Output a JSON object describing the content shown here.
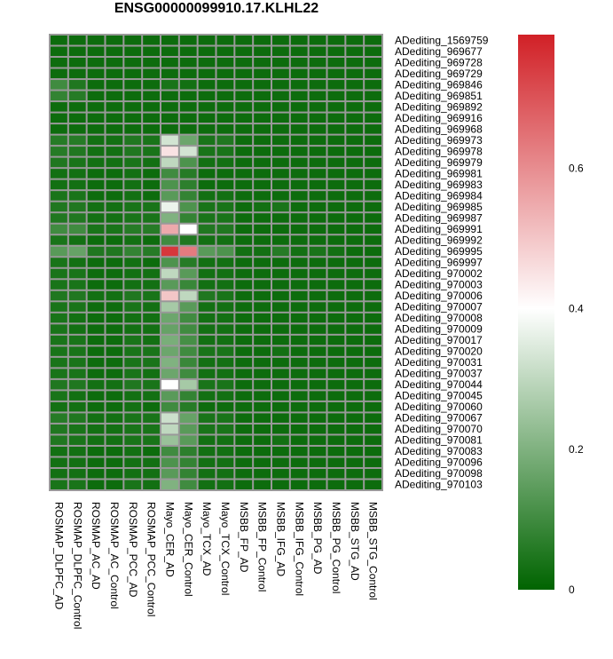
{
  "chart_data": {
    "type": "heatmap",
    "title": "ENSG00000099910.17.KLHL22",
    "columns": [
      "ROSMAP_DLPFC_AD",
      "ROSMAP_DLPFC_Control",
      "ROSMAP_AC_AD",
      "ROSMAP_AC_Control",
      "ROSMAP_PCC_AD",
      "ROSMAP_PCC_Control",
      "Mayo_CER_AD",
      "Mayo_CER_Control",
      "Mayo_TCX_AD",
      "Mayo_TCX_Control",
      "MSBB_FP_AD",
      "MSBB_FP_Control",
      "MSBB_IFG_AD",
      "MSBB_IFG_Control",
      "MSBB_PG_AD",
      "MSBB_PG_Control",
      "MSBB_STG_AD",
      "MSBB_STG_Control"
    ],
    "rows": [
      "ADediting_1569759",
      "ADediting_969677",
      "ADediting_969728",
      "ADediting_969729",
      "ADediting_969846",
      "ADediting_969851",
      "ADediting_969892",
      "ADediting_969916",
      "ADediting_969968",
      "ADediting_969973",
      "ADediting_969978",
      "ADediting_969979",
      "ADediting_969981",
      "ADediting_969983",
      "ADediting_969984",
      "ADediting_969985",
      "ADediting_969987",
      "ADediting_969991",
      "ADediting_969992",
      "ADediting_969995",
      "ADediting_969997",
      "ADediting_970002",
      "ADediting_970003",
      "ADediting_970006",
      "ADediting_970007",
      "ADediting_970008",
      "ADediting_970009",
      "ADediting_970017",
      "ADediting_970020",
      "ADediting_970031",
      "ADediting_970037",
      "ADediting_970044",
      "ADediting_970045",
      "ADediting_970060",
      "ADediting_970067",
      "ADediting_970070",
      "ADediting_970081",
      "ADediting_970083",
      "ADediting_970096",
      "ADediting_970098",
      "ADediting_970103"
    ],
    "values": [
      [
        0.02,
        0.02,
        0.02,
        0.02,
        0.02,
        0.02,
        0.02,
        0.02,
        0.02,
        0.02,
        0.02,
        0.02,
        0.02,
        0.02,
        0.02,
        0.02,
        0.02,
        0.02
      ],
      [
        0.02,
        0.02,
        0.02,
        0.02,
        0.02,
        0.02,
        0.02,
        0.02,
        0.02,
        0.02,
        0.02,
        0.02,
        0.02,
        0.02,
        0.02,
        0.02,
        0.02,
        0.02
      ],
      [
        0.02,
        0.02,
        0.02,
        0.02,
        0.02,
        0.02,
        0.02,
        0.02,
        0.02,
        0.02,
        0.02,
        0.02,
        0.02,
        0.02,
        0.02,
        0.02,
        0.02,
        0.02
      ],
      [
        0.02,
        0.02,
        0.02,
        0.02,
        0.02,
        0.02,
        0.02,
        0.02,
        0.02,
        0.02,
        0.02,
        0.02,
        0.02,
        0.02,
        0.02,
        0.02,
        0.02,
        0.02
      ],
      [
        0.1,
        0.05,
        0.02,
        0.02,
        0.02,
        0.02,
        0.04,
        0.03,
        0.02,
        0.02,
        0.02,
        0.02,
        0.02,
        0.02,
        0.02,
        0.02,
        0.02,
        0.02
      ],
      [
        0.08,
        0.06,
        0.02,
        0.02,
        0.02,
        0.02,
        0.02,
        0.02,
        0.02,
        0.02,
        0.02,
        0.02,
        0.02,
        0.02,
        0.02,
        0.02,
        0.02,
        0.02
      ],
      [
        0.02,
        0.02,
        0.02,
        0.02,
        0.02,
        0.02,
        0.02,
        0.02,
        0.02,
        0.02,
        0.02,
        0.02,
        0.02,
        0.02,
        0.02,
        0.02,
        0.02,
        0.02
      ],
      [
        0.02,
        0.02,
        0.02,
        0.02,
        0.02,
        0.02,
        0.02,
        0.02,
        0.02,
        0.02,
        0.02,
        0.02,
        0.02,
        0.02,
        0.02,
        0.02,
        0.02,
        0.02
      ],
      [
        0.02,
        0.02,
        0.02,
        0.02,
        0.02,
        0.02,
        0.02,
        0.02,
        0.02,
        0.02,
        0.02,
        0.02,
        0.02,
        0.02,
        0.02,
        0.02,
        0.02,
        0.02
      ],
      [
        0.06,
        0.06,
        0.03,
        0.03,
        0.05,
        0.04,
        0.33,
        0.17,
        0.04,
        0.05,
        0.02,
        0.02,
        0.02,
        0.02,
        0.02,
        0.02,
        0.02,
        0.02
      ],
      [
        0.06,
        0.05,
        0.03,
        0.03,
        0.05,
        0.04,
        0.45,
        0.33,
        0.04,
        0.04,
        0.02,
        0.02,
        0.02,
        0.02,
        0.02,
        0.02,
        0.02,
        0.02
      ],
      [
        0.05,
        0.04,
        0.03,
        0.03,
        0.04,
        0.03,
        0.3,
        0.12,
        0.03,
        0.03,
        0.02,
        0.02,
        0.02,
        0.02,
        0.02,
        0.02,
        0.02,
        0.02
      ],
      [
        0.03,
        0.03,
        0.02,
        0.02,
        0.03,
        0.02,
        0.1,
        0.06,
        0.02,
        0.02,
        0.02,
        0.02,
        0.02,
        0.02,
        0.02,
        0.02,
        0.02,
        0.02
      ],
      [
        0.03,
        0.03,
        0.02,
        0.02,
        0.03,
        0.02,
        0.12,
        0.07,
        0.02,
        0.02,
        0.02,
        0.02,
        0.02,
        0.02,
        0.02,
        0.02,
        0.02,
        0.02
      ],
      [
        0.04,
        0.04,
        0.02,
        0.02,
        0.03,
        0.02,
        0.14,
        0.08,
        0.03,
        0.03,
        0.02,
        0.02,
        0.02,
        0.02,
        0.02,
        0.02,
        0.02,
        0.02
      ],
      [
        0.05,
        0.05,
        0.03,
        0.03,
        0.04,
        0.04,
        0.37,
        0.12,
        0.04,
        0.04,
        0.02,
        0.03,
        0.04,
        0.02,
        0.02,
        0.02,
        0.02,
        0.02
      ],
      [
        0.05,
        0.05,
        0.03,
        0.03,
        0.04,
        0.04,
        0.2,
        0.08,
        0.04,
        0.04,
        0.02,
        0.02,
        0.02,
        0.02,
        0.02,
        0.02,
        0.02,
        0.02
      ],
      [
        0.1,
        0.1,
        0.04,
        0.04,
        0.06,
        0.06,
        0.55,
        0.4,
        0.05,
        0.05,
        0.02,
        0.02,
        0.02,
        0.02,
        0.02,
        0.02,
        0.02,
        0.02
      ],
      [
        0.04,
        0.03,
        0.02,
        0.02,
        0.03,
        0.02,
        0.1,
        0.05,
        0.03,
        0.03,
        0.02,
        0.02,
        0.02,
        0.02,
        0.02,
        0.02,
        0.02,
        0.02
      ],
      [
        0.14,
        0.16,
        0.05,
        0.05,
        0.08,
        0.06,
        0.75,
        0.63,
        0.14,
        0.12,
        0.03,
        0.03,
        0.06,
        0.03,
        0.04,
        0.03,
        0.02,
        0.02
      ],
      [
        0.04,
        0.03,
        0.02,
        0.02,
        0.03,
        0.02,
        0.12,
        0.06,
        0.03,
        0.03,
        0.02,
        0.02,
        0.02,
        0.02,
        0.02,
        0.02,
        0.02,
        0.02
      ],
      [
        0.04,
        0.04,
        0.02,
        0.02,
        0.03,
        0.03,
        0.3,
        0.14,
        0.03,
        0.03,
        0.02,
        0.02,
        0.02,
        0.02,
        0.02,
        0.02,
        0.02,
        0.02
      ],
      [
        0.04,
        0.04,
        0.02,
        0.02,
        0.03,
        0.03,
        0.14,
        0.09,
        0.03,
        0.03,
        0.02,
        0.02,
        0.02,
        0.02,
        0.02,
        0.02,
        0.02,
        0.02
      ],
      [
        0.05,
        0.05,
        0.03,
        0.03,
        0.05,
        0.04,
        0.5,
        0.3,
        0.05,
        0.04,
        0.02,
        0.02,
        0.02,
        0.02,
        0.02,
        0.02,
        0.02,
        0.02
      ],
      [
        0.04,
        0.04,
        0.02,
        0.02,
        0.04,
        0.03,
        0.26,
        0.14,
        0.03,
        0.03,
        0.02,
        0.02,
        0.02,
        0.02,
        0.02,
        0.02,
        0.02,
        0.02
      ],
      [
        0.04,
        0.03,
        0.02,
        0.02,
        0.03,
        0.03,
        0.17,
        0.1,
        0.03,
        0.03,
        0.02,
        0.02,
        0.02,
        0.02,
        0.02,
        0.02,
        0.02,
        0.02
      ],
      [
        0.04,
        0.03,
        0.02,
        0.02,
        0.03,
        0.03,
        0.16,
        0.1,
        0.03,
        0.03,
        0.02,
        0.02,
        0.02,
        0.02,
        0.02,
        0.02,
        0.02,
        0.02
      ],
      [
        0.04,
        0.04,
        0.02,
        0.02,
        0.04,
        0.03,
        0.19,
        0.11,
        0.03,
        0.03,
        0.02,
        0.02,
        0.02,
        0.02,
        0.02,
        0.02,
        0.02,
        0.02
      ],
      [
        0.04,
        0.04,
        0.02,
        0.02,
        0.04,
        0.04,
        0.17,
        0.1,
        0.04,
        0.04,
        0.02,
        0.02,
        0.03,
        0.02,
        0.02,
        0.02,
        0.02,
        0.02
      ],
      [
        0.04,
        0.04,
        0.02,
        0.02,
        0.04,
        0.04,
        0.2,
        0.09,
        0.03,
        0.03,
        0.02,
        0.02,
        0.02,
        0.02,
        0.02,
        0.02,
        0.02,
        0.02
      ],
      [
        0.04,
        0.04,
        0.02,
        0.02,
        0.04,
        0.03,
        0.17,
        0.1,
        0.03,
        0.03,
        0.02,
        0.02,
        0.02,
        0.02,
        0.02,
        0.02,
        0.02,
        0.02
      ],
      [
        0.05,
        0.05,
        0.03,
        0.03,
        0.05,
        0.04,
        0.4,
        0.26,
        0.04,
        0.04,
        0.02,
        0.02,
        0.02,
        0.02,
        0.02,
        0.02,
        0.02,
        0.02
      ],
      [
        0.04,
        0.03,
        0.02,
        0.02,
        0.03,
        0.03,
        0.14,
        0.08,
        0.03,
        0.03,
        0.02,
        0.02,
        0.02,
        0.02,
        0.02,
        0.02,
        0.02,
        0.02
      ],
      [
        0.03,
        0.03,
        0.02,
        0.02,
        0.03,
        0.02,
        0.1,
        0.06,
        0.02,
        0.02,
        0.02,
        0.02,
        0.02,
        0.02,
        0.02,
        0.02,
        0.02,
        0.02
      ],
      [
        0.06,
        0.05,
        0.03,
        0.03,
        0.04,
        0.04,
        0.32,
        0.16,
        0.04,
        0.04,
        0.02,
        0.02,
        0.02,
        0.02,
        0.02,
        0.02,
        0.02,
        0.02
      ],
      [
        0.05,
        0.04,
        0.03,
        0.03,
        0.04,
        0.04,
        0.3,
        0.14,
        0.04,
        0.04,
        0.02,
        0.02,
        0.02,
        0.02,
        0.02,
        0.02,
        0.02,
        0.02
      ],
      [
        0.05,
        0.04,
        0.03,
        0.03,
        0.04,
        0.04,
        0.24,
        0.14,
        0.03,
        0.03,
        0.02,
        0.02,
        0.03,
        0.02,
        0.02,
        0.02,
        0.02,
        0.02
      ],
      [
        0.03,
        0.03,
        0.02,
        0.02,
        0.03,
        0.02,
        0.1,
        0.07,
        0.03,
        0.03,
        0.02,
        0.02,
        0.02,
        0.02,
        0.02,
        0.02,
        0.02,
        0.02
      ],
      [
        0.03,
        0.03,
        0.02,
        0.02,
        0.03,
        0.03,
        0.12,
        0.08,
        0.03,
        0.03,
        0.02,
        0.02,
        0.02,
        0.02,
        0.02,
        0.02,
        0.02,
        0.02
      ],
      [
        0.03,
        0.03,
        0.02,
        0.02,
        0.03,
        0.03,
        0.14,
        0.08,
        0.03,
        0.03,
        0.02,
        0.02,
        0.02,
        0.02,
        0.02,
        0.02,
        0.02,
        0.02
      ],
      [
        0.04,
        0.04,
        0.02,
        0.02,
        0.04,
        0.03,
        0.2,
        0.1,
        0.03,
        0.03,
        0.02,
        0.02,
        0.02,
        0.02,
        0.02,
        0.02,
        0.02,
        0.02
      ]
    ],
    "colorscale": {
      "range": [
        0,
        0.79
      ],
      "low_color": "#006400",
      "mid_color": "#ffffff",
      "high_color": "#d12026",
      "mid_value": 0.4,
      "ticks": [
        0,
        0.2,
        0.4,
        0.6
      ],
      "tick_labels": [
        "0",
        "0.2",
        "0.4",
        "0.6"
      ]
    },
    "legend": "right",
    "grid_color": "#999999"
  }
}
